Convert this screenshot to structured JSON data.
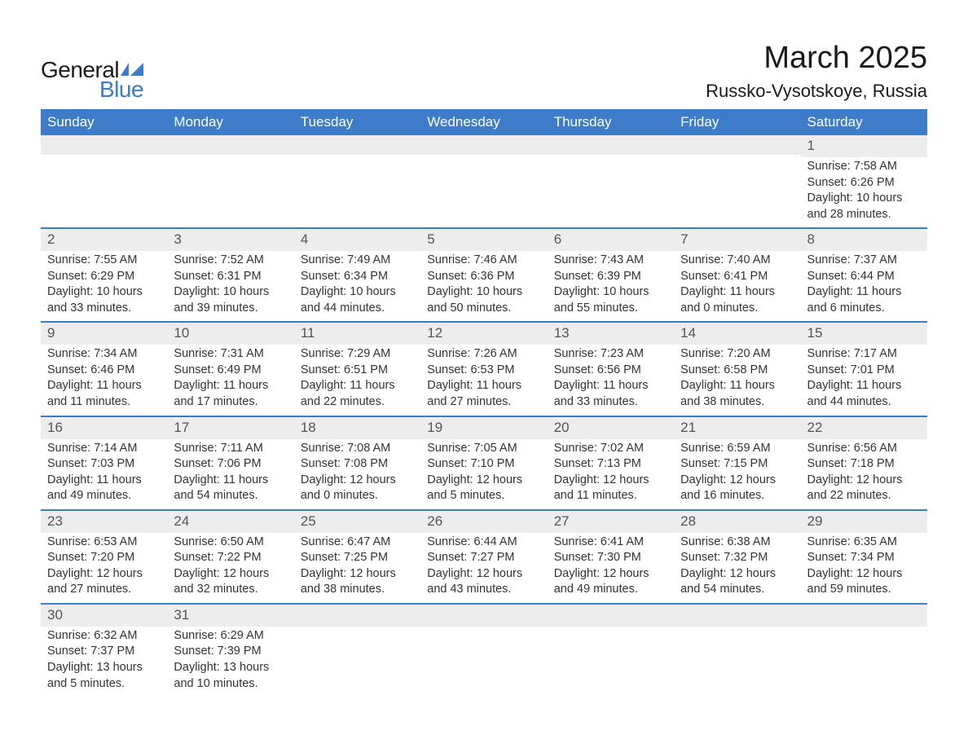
{
  "brand": {
    "word1": "General",
    "word2": "Blue",
    "text_color": "#1a1a1a",
    "accent_color": "#3d7cc9"
  },
  "header": {
    "month_title": "March 2025",
    "location": "Russko-Vysotskoye, Russia"
  },
  "colors": {
    "header_bg": "#3d7cc9",
    "header_text": "#ffffff",
    "daynum_bg": "#ededed",
    "daynum_text": "#555555",
    "body_text": "#333333",
    "row_divider": "#3d7cc9",
    "page_bg": "#ffffff"
  },
  "typography": {
    "month_title_fontsize": 38,
    "location_fontsize": 22,
    "weekday_fontsize": 17,
    "daynum_fontsize": 17,
    "body_fontsize": 14.5
  },
  "weekdays": [
    "Sunday",
    "Monday",
    "Tuesday",
    "Wednesday",
    "Thursday",
    "Friday",
    "Saturday"
  ],
  "weeks": [
    [
      null,
      null,
      null,
      null,
      null,
      null,
      {
        "n": "1",
        "sunrise": "Sunrise: 7:58 AM",
        "sunset": "Sunset: 6:26 PM",
        "daylight1": "Daylight: 10 hours",
        "daylight2": "and 28 minutes."
      }
    ],
    [
      {
        "n": "2",
        "sunrise": "Sunrise: 7:55 AM",
        "sunset": "Sunset: 6:29 PM",
        "daylight1": "Daylight: 10 hours",
        "daylight2": "and 33 minutes."
      },
      {
        "n": "3",
        "sunrise": "Sunrise: 7:52 AM",
        "sunset": "Sunset: 6:31 PM",
        "daylight1": "Daylight: 10 hours",
        "daylight2": "and 39 minutes."
      },
      {
        "n": "4",
        "sunrise": "Sunrise: 7:49 AM",
        "sunset": "Sunset: 6:34 PM",
        "daylight1": "Daylight: 10 hours",
        "daylight2": "and 44 minutes."
      },
      {
        "n": "5",
        "sunrise": "Sunrise: 7:46 AM",
        "sunset": "Sunset: 6:36 PM",
        "daylight1": "Daylight: 10 hours",
        "daylight2": "and 50 minutes."
      },
      {
        "n": "6",
        "sunrise": "Sunrise: 7:43 AM",
        "sunset": "Sunset: 6:39 PM",
        "daylight1": "Daylight: 10 hours",
        "daylight2": "and 55 minutes."
      },
      {
        "n": "7",
        "sunrise": "Sunrise: 7:40 AM",
        "sunset": "Sunset: 6:41 PM",
        "daylight1": "Daylight: 11 hours",
        "daylight2": "and 0 minutes."
      },
      {
        "n": "8",
        "sunrise": "Sunrise: 7:37 AM",
        "sunset": "Sunset: 6:44 PM",
        "daylight1": "Daylight: 11 hours",
        "daylight2": "and 6 minutes."
      }
    ],
    [
      {
        "n": "9",
        "sunrise": "Sunrise: 7:34 AM",
        "sunset": "Sunset: 6:46 PM",
        "daylight1": "Daylight: 11 hours",
        "daylight2": "and 11 minutes."
      },
      {
        "n": "10",
        "sunrise": "Sunrise: 7:31 AM",
        "sunset": "Sunset: 6:49 PM",
        "daylight1": "Daylight: 11 hours",
        "daylight2": "and 17 minutes."
      },
      {
        "n": "11",
        "sunrise": "Sunrise: 7:29 AM",
        "sunset": "Sunset: 6:51 PM",
        "daylight1": "Daylight: 11 hours",
        "daylight2": "and 22 minutes."
      },
      {
        "n": "12",
        "sunrise": "Sunrise: 7:26 AM",
        "sunset": "Sunset: 6:53 PM",
        "daylight1": "Daylight: 11 hours",
        "daylight2": "and 27 minutes."
      },
      {
        "n": "13",
        "sunrise": "Sunrise: 7:23 AM",
        "sunset": "Sunset: 6:56 PM",
        "daylight1": "Daylight: 11 hours",
        "daylight2": "and 33 minutes."
      },
      {
        "n": "14",
        "sunrise": "Sunrise: 7:20 AM",
        "sunset": "Sunset: 6:58 PM",
        "daylight1": "Daylight: 11 hours",
        "daylight2": "and 38 minutes."
      },
      {
        "n": "15",
        "sunrise": "Sunrise: 7:17 AM",
        "sunset": "Sunset: 7:01 PM",
        "daylight1": "Daylight: 11 hours",
        "daylight2": "and 44 minutes."
      }
    ],
    [
      {
        "n": "16",
        "sunrise": "Sunrise: 7:14 AM",
        "sunset": "Sunset: 7:03 PM",
        "daylight1": "Daylight: 11 hours",
        "daylight2": "and 49 minutes."
      },
      {
        "n": "17",
        "sunrise": "Sunrise: 7:11 AM",
        "sunset": "Sunset: 7:06 PM",
        "daylight1": "Daylight: 11 hours",
        "daylight2": "and 54 minutes."
      },
      {
        "n": "18",
        "sunrise": "Sunrise: 7:08 AM",
        "sunset": "Sunset: 7:08 PM",
        "daylight1": "Daylight: 12 hours",
        "daylight2": "and 0 minutes."
      },
      {
        "n": "19",
        "sunrise": "Sunrise: 7:05 AM",
        "sunset": "Sunset: 7:10 PM",
        "daylight1": "Daylight: 12 hours",
        "daylight2": "and 5 minutes."
      },
      {
        "n": "20",
        "sunrise": "Sunrise: 7:02 AM",
        "sunset": "Sunset: 7:13 PM",
        "daylight1": "Daylight: 12 hours",
        "daylight2": "and 11 minutes."
      },
      {
        "n": "21",
        "sunrise": "Sunrise: 6:59 AM",
        "sunset": "Sunset: 7:15 PM",
        "daylight1": "Daylight: 12 hours",
        "daylight2": "and 16 minutes."
      },
      {
        "n": "22",
        "sunrise": "Sunrise: 6:56 AM",
        "sunset": "Sunset: 7:18 PM",
        "daylight1": "Daylight: 12 hours",
        "daylight2": "and 22 minutes."
      }
    ],
    [
      {
        "n": "23",
        "sunrise": "Sunrise: 6:53 AM",
        "sunset": "Sunset: 7:20 PM",
        "daylight1": "Daylight: 12 hours",
        "daylight2": "and 27 minutes."
      },
      {
        "n": "24",
        "sunrise": "Sunrise: 6:50 AM",
        "sunset": "Sunset: 7:22 PM",
        "daylight1": "Daylight: 12 hours",
        "daylight2": "and 32 minutes."
      },
      {
        "n": "25",
        "sunrise": "Sunrise: 6:47 AM",
        "sunset": "Sunset: 7:25 PM",
        "daylight1": "Daylight: 12 hours",
        "daylight2": "and 38 minutes."
      },
      {
        "n": "26",
        "sunrise": "Sunrise: 6:44 AM",
        "sunset": "Sunset: 7:27 PM",
        "daylight1": "Daylight: 12 hours",
        "daylight2": "and 43 minutes."
      },
      {
        "n": "27",
        "sunrise": "Sunrise: 6:41 AM",
        "sunset": "Sunset: 7:30 PM",
        "daylight1": "Daylight: 12 hours",
        "daylight2": "and 49 minutes."
      },
      {
        "n": "28",
        "sunrise": "Sunrise: 6:38 AM",
        "sunset": "Sunset: 7:32 PM",
        "daylight1": "Daylight: 12 hours",
        "daylight2": "and 54 minutes."
      },
      {
        "n": "29",
        "sunrise": "Sunrise: 6:35 AM",
        "sunset": "Sunset: 7:34 PM",
        "daylight1": "Daylight: 12 hours",
        "daylight2": "and 59 minutes."
      }
    ],
    [
      {
        "n": "30",
        "sunrise": "Sunrise: 6:32 AM",
        "sunset": "Sunset: 7:37 PM",
        "daylight1": "Daylight: 13 hours",
        "daylight2": "and 5 minutes."
      },
      {
        "n": "31",
        "sunrise": "Sunrise: 6:29 AM",
        "sunset": "Sunset: 7:39 PM",
        "daylight1": "Daylight: 13 hours",
        "daylight2": "and 10 minutes."
      },
      null,
      null,
      null,
      null,
      null
    ]
  ]
}
